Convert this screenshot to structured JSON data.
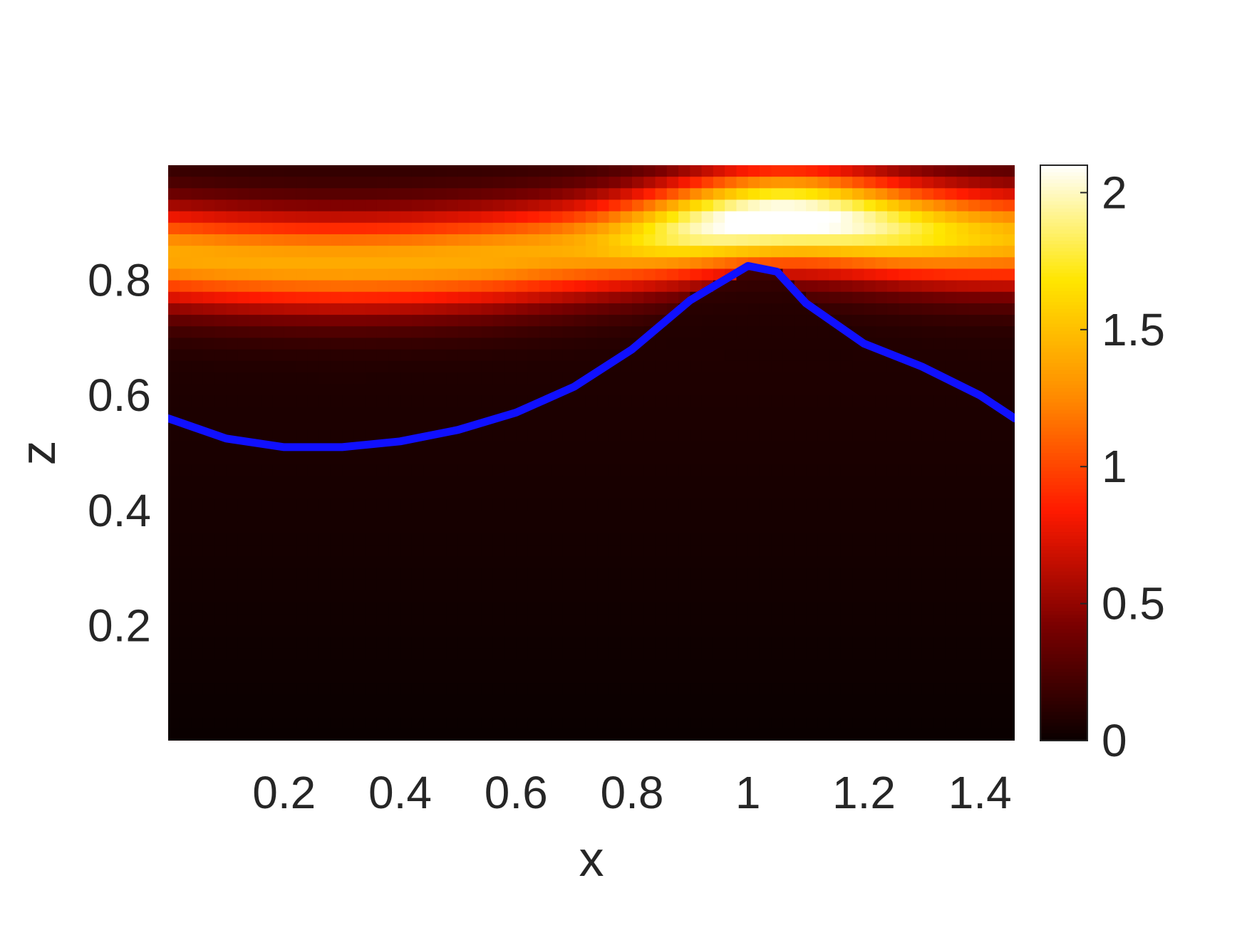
{
  "chart_data": {
    "type": "heatmap",
    "title": "",
    "xlabel": "x",
    "ylabel": "z",
    "xlim": [
      0,
      1.46
    ],
    "ylim": [
      0,
      1.0
    ],
    "x_ticks": [
      0.2,
      0.4,
      0.6,
      0.8,
      1.0,
      1.2,
      1.4
    ],
    "x_tick_labels": [
      "0.2",
      "0.4",
      "0.6",
      "0.8",
      "1",
      "1.2",
      "1.4"
    ],
    "y_ticks": [
      0.2,
      0.4,
      0.6,
      0.8
    ],
    "y_tick_labels": [
      "0.2",
      "0.4",
      "0.6",
      "0.8"
    ],
    "grid": false,
    "colormap": "hot",
    "colorbar": {
      "position": "right",
      "limits": [
        0,
        2.1
      ],
      "ticks": [
        0,
        0.5,
        1,
        1.5,
        2
      ],
      "tick_labels": [
        "0",
        "0.5",
        "1",
        "1.5",
        "2"
      ],
      "colors": [
        "#0a0000",
        "#7a0000",
        "#ff1a00",
        "#ff8c00",
        "#ffe600",
        "#ffffff"
      ]
    },
    "field_peaks": [
      {
        "x": 0.25,
        "z": 0.86,
        "value": 1.3
      },
      {
        "x": 1.05,
        "z": 0.9,
        "value": 2.1
      }
    ],
    "line": {
      "color": "#1010ff",
      "x": [
        0.0,
        0.1,
        0.2,
        0.3,
        0.4,
        0.5,
        0.6,
        0.7,
        0.8,
        0.9,
        1.0,
        1.05,
        1.1,
        1.2,
        1.3,
        1.4,
        1.46
      ],
      "z": [
        0.56,
        0.525,
        0.51,
        0.51,
        0.52,
        0.54,
        0.57,
        0.615,
        0.68,
        0.765,
        0.825,
        0.815,
        0.76,
        0.69,
        0.65,
        0.6,
        0.56
      ]
    }
  }
}
